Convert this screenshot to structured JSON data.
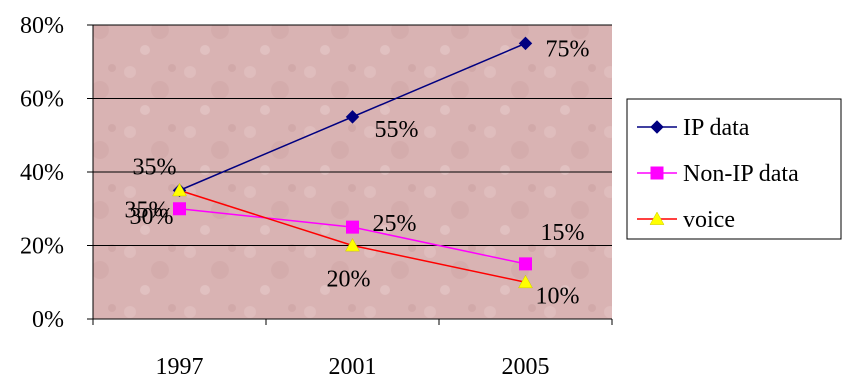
{
  "chart_data": {
    "type": "line",
    "title": "",
    "xlabel": "",
    "ylabel": "",
    "categories": [
      "1997",
      "2001",
      "2005"
    ],
    "ylim": [
      0,
      80
    ],
    "y_ticks": [
      "0%",
      "20%",
      "40%",
      "60%",
      "80%"
    ],
    "y_tick_values": [
      0,
      20,
      40,
      60,
      80
    ],
    "grid": true,
    "legend_position": "right",
    "plot_background": "#d9b3b3",
    "series": [
      {
        "name": "IP data",
        "values": [
          35,
          55,
          75
        ],
        "labels": [
          "35%",
          "55%",
          "75%"
        ],
        "color": "#000080",
        "marker": "diamond",
        "marker_color": "#000080"
      },
      {
        "name": "Non-IP data",
        "values": [
          30,
          25,
          15
        ],
        "labels": [
          "30%",
          "25%",
          "15%"
        ],
        "color": "#ff00ff",
        "marker": "square",
        "marker_color": "#ff00ff"
      },
      {
        "name": "voice",
        "values": [
          35,
          20,
          10
        ],
        "labels": [
          "35%",
          "20%",
          "10%"
        ],
        "color": "#ff0000",
        "marker": "triangle",
        "marker_color": "#ffff00"
      }
    ]
  }
}
